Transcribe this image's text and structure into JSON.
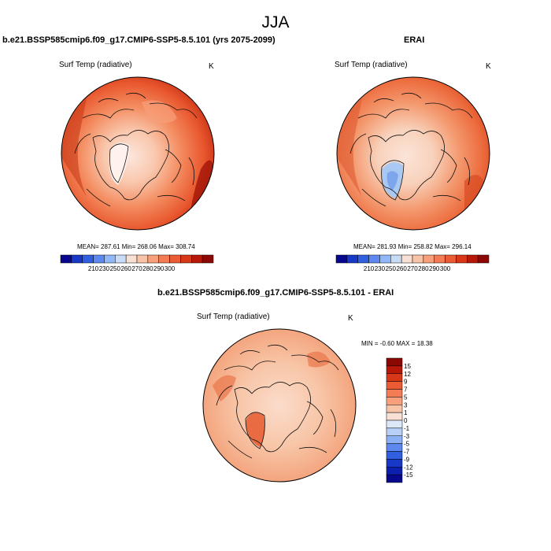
{
  "figure": {
    "title": "JJA"
  },
  "panels": [
    {
      "title": "b.e21.BSSP585cmip6.f09_g17.CMIP6-SSP5-8.5.101 (yrs 2075-2099)",
      "variable": "Surf Temp (radiative)",
      "units": "K",
      "stats": "MEAN= 287.61   Min= 268.06   Max= 308.74",
      "colorbar": {
        "ticks": [
          "210",
          "230",
          "250",
          "260",
          "270",
          "280",
          "290",
          "300"
        ],
        "colors": [
          "#08088f",
          "#1838c8",
          "#3060e0",
          "#5c88f0",
          "#90b8f8",
          "#c8dcf8",
          "#f8e0d4",
          "#f8c4a8",
          "#f8a07c",
          "#f47c54",
          "#ec5c34",
          "#d83818",
          "#b81808",
          "#8c0804"
        ]
      }
    },
    {
      "title": "ERAI",
      "variable": "Surf Temp (radiative)",
      "units": "K",
      "stats": "MEAN= 281.93   Min= 258.82   Max= 296.14",
      "colorbar": {
        "ticks": [
          "210",
          "230",
          "250",
          "260",
          "270",
          "280",
          "290",
          "300"
        ],
        "colors": [
          "#08088f",
          "#1838c8",
          "#3060e0",
          "#5c88f0",
          "#90b8f8",
          "#c8dcf8",
          "#f8e0d4",
          "#f8c4a8",
          "#f8a07c",
          "#f47c54",
          "#ec5c34",
          "#d83818",
          "#b81808",
          "#8c0804"
        ]
      }
    },
    {
      "title": "b.e21.BSSP585cmip6.f09_g17.CMIP6-SSP5-8.5.101 - ERAI",
      "variable": "Surf Temp (radiative)",
      "units": "K",
      "stats": "MIN =  -0.60 MAX =  18.38",
      "colorbar": {
        "ticks": [
          "15",
          "12",
          "9",
          "7",
          "5",
          "3",
          "1",
          "0",
          "-1",
          "-3",
          "-5",
          "-7",
          "-9",
          "-12",
          "-15"
        ],
        "colors": [
          "#8c0804",
          "#b81808",
          "#d83818",
          "#ec5c34",
          "#f47c54",
          "#f8a07c",
          "#f8c4a8",
          "#f8e0d4",
          "#dce8f8",
          "#b8d0f8",
          "#8cb0f4",
          "#5c88f0",
          "#3060e0",
          "#1838c8",
          "#0c20b0",
          "#08088f"
        ]
      }
    }
  ]
}
